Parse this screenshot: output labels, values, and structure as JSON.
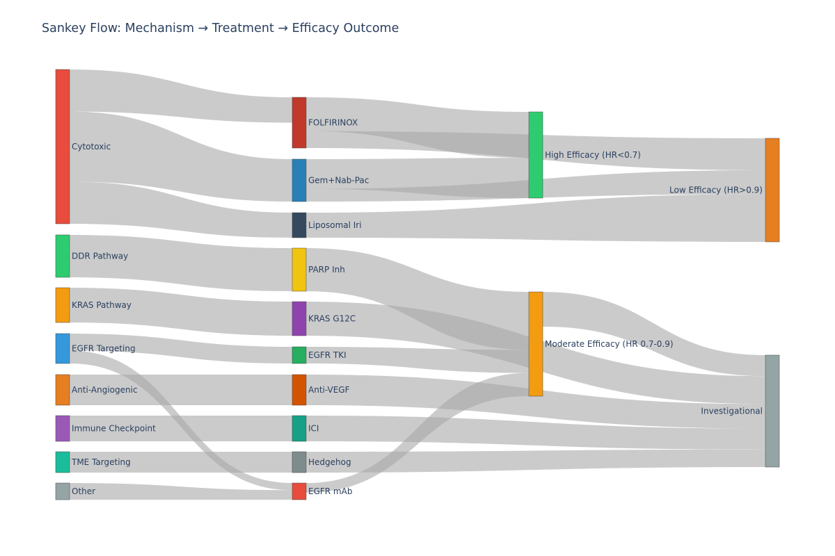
{
  "title": "Sankey Flow: Mechanism → Treatment → Efficacy Outcome",
  "colors": {
    "link": "#a9a9a9",
    "title_text": "#2a3f5f",
    "node_border": "#444444"
  },
  "chart_data": {
    "type": "sankey",
    "title": "Sankey Flow: Mechanism → Treatment → Efficacy Outcome",
    "nodes": [
      {
        "id": "cytotoxic",
        "label": "Cytotoxic",
        "color": "#e74c3c"
      },
      {
        "id": "ddr",
        "label": "DDR Pathway",
        "color": "#2ecc71"
      },
      {
        "id": "kras",
        "label": "KRAS Pathway",
        "color": "#f39c12"
      },
      {
        "id": "egfr",
        "label": "EGFR Targeting",
        "color": "#3498db"
      },
      {
        "id": "antiang",
        "label": "Anti-Angiogenic",
        "color": "#e67e22"
      },
      {
        "id": "immune",
        "label": "Immune Checkpoint",
        "color": "#9b59b6"
      },
      {
        "id": "tme",
        "label": "TME Targeting",
        "color": "#1abc9c"
      },
      {
        "id": "other",
        "label": "Other",
        "color": "#95a5a6"
      },
      {
        "id": "folfirinox",
        "label": "FOLFIRINOX",
        "color": "#c0392b"
      },
      {
        "id": "gemnab",
        "label": "Gem+Nab-Pac",
        "color": "#2980b9"
      },
      {
        "id": "lipoiri",
        "label": "Liposomal Iri",
        "color": "#34495e"
      },
      {
        "id": "parp",
        "label": "PARP Inh",
        "color": "#f1c40f"
      },
      {
        "id": "krasg12c",
        "label": "KRAS G12C",
        "color": "#8e44ad"
      },
      {
        "id": "egfrtki",
        "label": "EGFR TKI",
        "color": "#27ae60"
      },
      {
        "id": "antivegf",
        "label": "Anti-VEGF",
        "color": "#d35400"
      },
      {
        "id": "ici",
        "label": "ICI",
        "color": "#16a085"
      },
      {
        "id": "hedgehog",
        "label": "Hedgehog",
        "color": "#7f8c8d"
      },
      {
        "id": "egfrmab",
        "label": "EGFR mAb",
        "color": "#e74c3c"
      },
      {
        "id": "high",
        "label": "High Efficacy (HR<0.7)",
        "color": "#2ecc71"
      },
      {
        "id": "moderate",
        "label": "Moderate Efficacy (HR 0.7-0.9)",
        "color": "#f39c12"
      },
      {
        "id": "low",
        "label": "Low Efficacy (HR>0.9)",
        "color": "#e67e22"
      },
      {
        "id": "invest",
        "label": "Investigational",
        "color": "#95a5a6"
      }
    ],
    "links": [
      {
        "source": "cytotoxic",
        "target": "gemnab",
        "value": 10
      },
      {
        "source": "cytotoxic",
        "target": "folfirinox",
        "value": 6
      },
      {
        "source": "cytotoxic",
        "target": "lipoiri",
        "value": 6
      },
      {
        "source": "ddr",
        "target": "parp",
        "value": 10
      },
      {
        "source": "kras",
        "target": "krasg12c",
        "value": 8
      },
      {
        "source": "egfr",
        "target": "egfrtki",
        "value": 4
      },
      {
        "source": "egfr",
        "target": "egfrmab",
        "value": 3
      },
      {
        "source": "antiang",
        "target": "antivegf",
        "value": 7
      },
      {
        "source": "immune",
        "target": "ici",
        "value": 6
      },
      {
        "source": "tme",
        "target": "hedgehog",
        "value": 5
      },
      {
        "source": "other",
        "target": "egfrmab",
        "value": 4
      },
      {
        "source": "folfirinox",
        "target": "high",
        "value": 8
      },
      {
        "source": "folfirinox",
        "target": "low",
        "value": 4
      },
      {
        "source": "gemnab",
        "target": "high",
        "value": 7
      },
      {
        "source": "gemnab",
        "target": "low",
        "value": 3
      },
      {
        "source": "lipoiri",
        "target": "low",
        "value": 6
      },
      {
        "source": "parp",
        "target": "moderate",
        "value": 10
      },
      {
        "source": "krasg12c",
        "target": "invest",
        "value": 8
      },
      {
        "source": "egfrtki",
        "target": "moderate",
        "value": 4
      },
      {
        "source": "antivegf",
        "target": "invest",
        "value": 7
      },
      {
        "source": "ici",
        "target": "invest",
        "value": 6
      },
      {
        "source": "hedgehog",
        "target": "invest",
        "value": 5
      },
      {
        "source": "egfrmab",
        "target": "moderate",
        "value": 4
      },
      {
        "source": "moderate",
        "target": "invest",
        "value": 6
      }
    ]
  }
}
